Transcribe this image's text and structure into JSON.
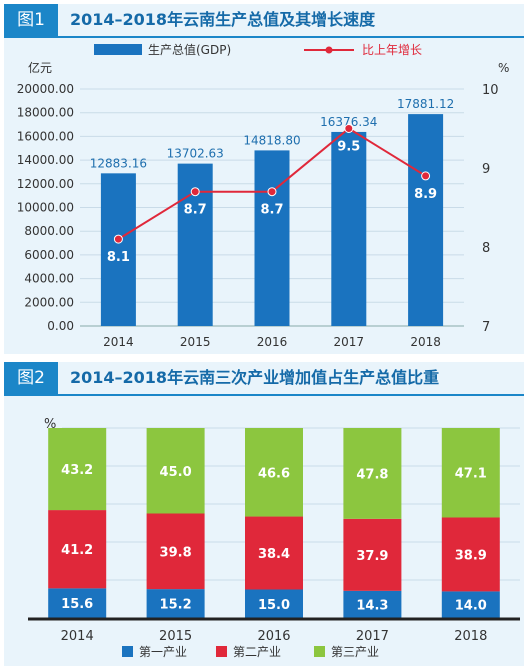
{
  "figure1": {
    "tag": "图1",
    "title": "2014–2018年云南生产总值及其增长速度",
    "colors": {
      "bar": "#1a73bf",
      "line": "#e0283a",
      "label": "#1f6fae"
    },
    "chart_data": {
      "type": "bar+line",
      "categories": [
        "2014",
        "2015",
        "2016",
        "2017",
        "2018"
      ],
      "series": [
        {
          "name": "生产总值(GDP)",
          "type": "bar",
          "axis": "left",
          "values": [
            12883.16,
            13702.63,
            14818.8,
            16376.34,
            17881.12
          ],
          "labels": [
            "12883.16",
            "13702.63",
            "14818.80",
            "16376.34",
            "17881.12"
          ]
        },
        {
          "name": "比上年增长",
          "type": "line",
          "axis": "right",
          "values": [
            8.1,
            8.7,
            8.7,
            9.5,
            8.9
          ],
          "labels": [
            "8.1",
            "8.7",
            "8.7",
            "9.5",
            "8.9"
          ]
        }
      ],
      "y_left": {
        "unit": "亿元",
        "lim": [
          0,
          20000
        ],
        "ticks": [
          "0.00",
          "2000.00",
          "4000.00",
          "6000.00",
          "8000.00",
          "10000.00",
          "12000.00",
          "14000.00",
          "16000.00",
          "18000.00",
          "20000.00"
        ]
      },
      "y_right": {
        "unit": "%",
        "lim": [
          7,
          10
        ],
        "ticks": [
          "7",
          "8",
          "9",
          "10"
        ]
      },
      "legend_placement": "top"
    }
  },
  "figure2": {
    "tag": "图2",
    "title": "2014–2018年云南三次产业增加值占生产总值比重",
    "colors": {
      "primary": "#1a73bf",
      "secondary": "#e0283a",
      "tertiary": "#8cc63f"
    },
    "chart_data": {
      "type": "stacked-bar",
      "categories": [
        "2014",
        "2015",
        "2016",
        "2017",
        "2018"
      ],
      "y_unit": "%",
      "ylim": [
        0,
        100
      ],
      "series": [
        {
          "name": "第一产业",
          "values": [
            15.6,
            15.2,
            15.0,
            14.3,
            14.0
          ],
          "labels": [
            "15.6",
            "15.2",
            "15.0",
            "14.3",
            "14.0"
          ]
        },
        {
          "name": "第二产业",
          "values": [
            41.2,
            39.8,
            38.4,
            37.9,
            38.9
          ],
          "labels": [
            "41.2",
            "39.8",
            "38.4",
            "37.9",
            "38.9"
          ]
        },
        {
          "name": "第三产业",
          "values": [
            43.2,
            45.0,
            46.6,
            47.8,
            47.1
          ],
          "labels": [
            "43.2",
            "45.0",
            "46.6",
            "47.8",
            "47.1"
          ]
        }
      ],
      "legend_placement": "bottom"
    }
  }
}
